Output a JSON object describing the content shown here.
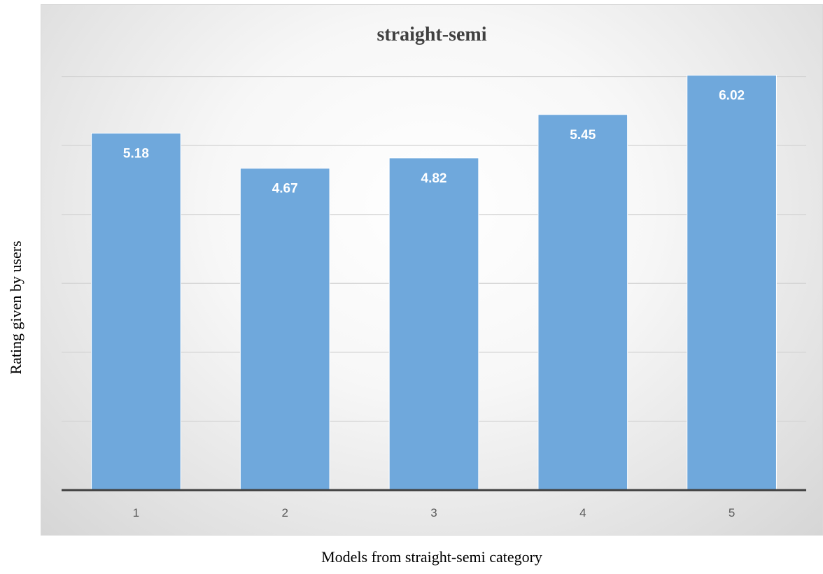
{
  "chart_data": {
    "type": "bar",
    "title": "straight-semi",
    "xlabel": "Models from straight-semi category",
    "ylabel": "Rating given by users",
    "categories": [
      "1",
      "2",
      "3",
      "4",
      "5"
    ],
    "values": [
      5.18,
      4.67,
      4.82,
      5.45,
      6.02
    ],
    "data_labels": [
      "5.18",
      "4.67",
      "4.82",
      "5.45",
      "6.02"
    ],
    "ylim": [
      0,
      7
    ],
    "grid": true,
    "legend": "none",
    "colors": {
      "bar": "#6fa8dc",
      "bar_edge": "#ffffff",
      "grid": "#d4d4d4",
      "baseline": "#404040"
    }
  }
}
